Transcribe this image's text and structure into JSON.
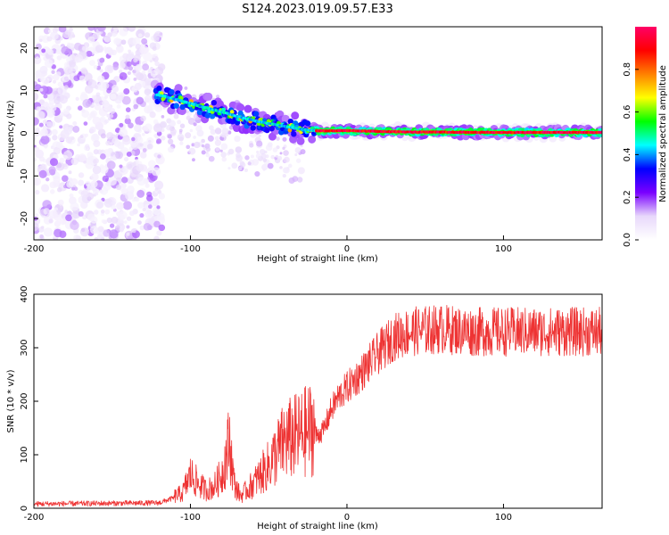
{
  "title": "S124.2023.019.09.57.E33",
  "chart_data": [
    {
      "type": "heatmap",
      "name": "spectrogram",
      "xlabel": "Height of straight line (km)",
      "ylabel": "Frequency (Hz)",
      "xlim": [
        -200,
        163
      ],
      "ylim": [
        -25,
        25
      ],
      "xticks": [
        -200,
        -100,
        0,
        100
      ],
      "yticks": [
        -20,
        -10,
        0,
        10,
        20
      ],
      "colorbar": {
        "label": "Normalized spectral amplitude",
        "range": [
          0,
          1
        ],
        "ticks": [
          "0.0",
          "0.2",
          "0.4",
          "0.6",
          "0.8"
        ],
        "colors": [
          "#ffffff",
          "#e8d8fb",
          "#7a00ff",
          "#0000ff",
          "#00ffff",
          "#00ff00",
          "#ffff00",
          "#ff8000",
          "#ff0000",
          "#ff0066"
        ]
      },
      "ridge": {
        "description": "signal frequency track",
        "points": [
          [
            -120,
            9
          ],
          [
            -100,
            7
          ],
          [
            -80,
            5
          ],
          [
            -60,
            3
          ],
          [
            -45,
            2
          ],
          [
            -30,
            1
          ],
          [
            -20,
            0.6
          ],
          [
            0,
            0.6
          ],
          [
            40,
            0.3
          ],
          [
            100,
            0.2
          ],
          [
            163,
            0.2
          ]
        ]
      },
      "noise_region_x": [
        -200,
        -118
      ]
    },
    {
      "type": "line",
      "name": "snr",
      "xlabel": "Height of straight line (km)",
      "ylabel": "SNR (10 * v/v)",
      "xlim": [
        -200,
        163
      ],
      "ylim": [
        0,
        400
      ],
      "xticks": [
        -200,
        -100,
        0,
        100
      ],
      "yticks": [
        0,
        100,
        200,
        300,
        400
      ],
      "color": "#ee3333",
      "trend_points": [
        [
          -200,
          8
        ],
        [
          -120,
          10
        ],
        [
          -105,
          25
        ],
        [
          -100,
          55
        ],
        [
          -95,
          40
        ],
        [
          -90,
          30
        ],
        [
          -85,
          35
        ],
        [
          -80,
          55
        ],
        [
          -75,
          110
        ],
        [
          -72,
          40
        ],
        [
          -68,
          20
        ],
        [
          -60,
          40
        ],
        [
          -50,
          70
        ],
        [
          -40,
          110
        ],
        [
          -30,
          120
        ],
        [
          -20,
          135
        ],
        [
          -15,
          145
        ],
        [
          -10,
          185
        ],
        [
          -5,
          210
        ],
        [
          0,
          225
        ],
        [
          10,
          255
        ],
        [
          20,
          290
        ],
        [
          30,
          320
        ],
        [
          40,
          330
        ],
        [
          60,
          335
        ],
        [
          80,
          330
        ],
        [
          100,
          330
        ],
        [
          120,
          330
        ],
        [
          140,
          330
        ],
        [
          163,
          330
        ]
      ]
    }
  ]
}
